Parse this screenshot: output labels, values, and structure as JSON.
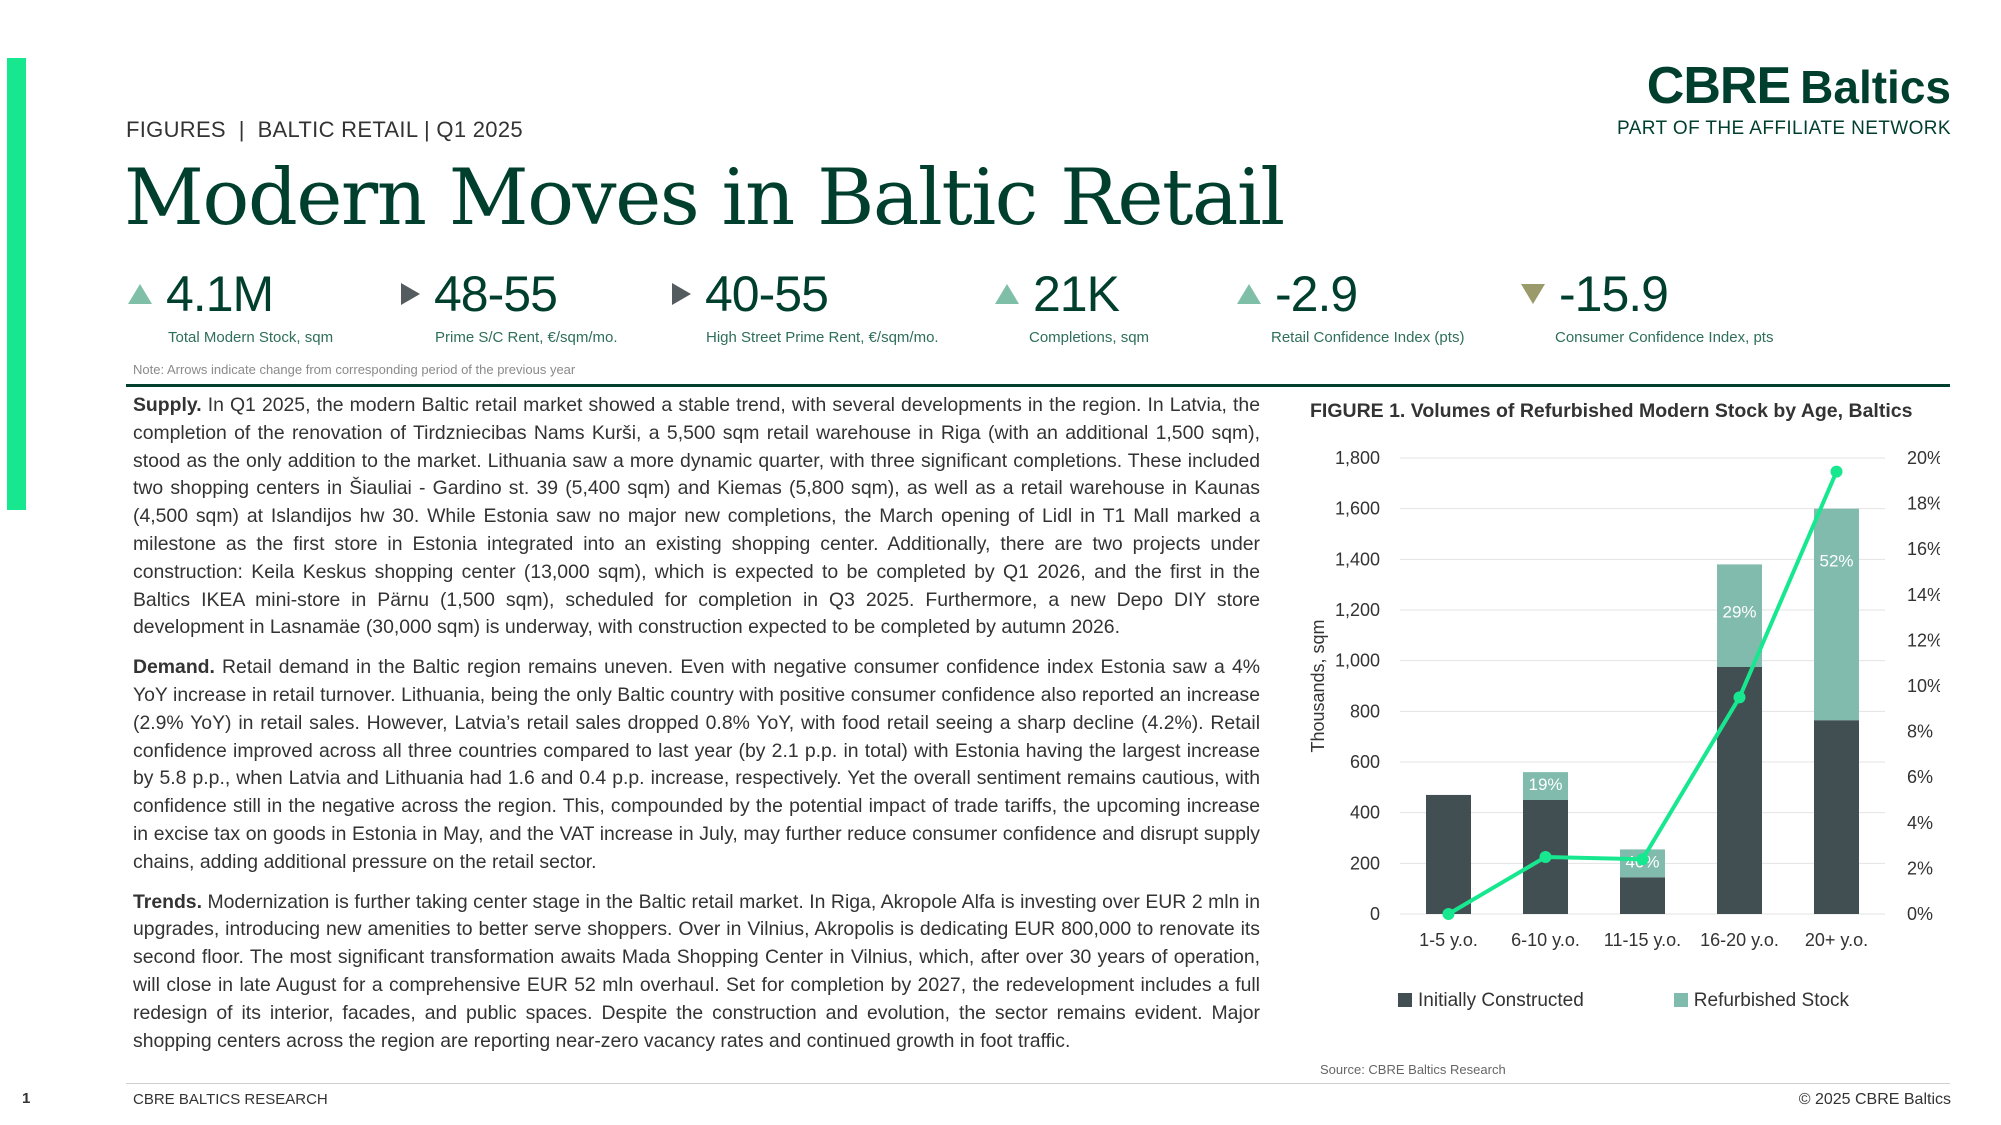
{
  "header": {
    "section": "FIGURES",
    "topic": "BALTIC RETAIL",
    "period": "Q1 2025",
    "separator": "|"
  },
  "brand": {
    "name": "CBRE",
    "region": "Baltics",
    "tagline": "PART OF THE AFFILIATE NETWORK"
  },
  "title": "Modern Moves in Baltic Retail",
  "kpis": [
    {
      "value": "4.1M",
      "label": "Total Modern Stock, sqm",
      "trend": "up"
    },
    {
      "value": "48-55",
      "label": "Prime S/C Rent, €/sqm/mo.",
      "trend": "flat"
    },
    {
      "value": "40-55",
      "label": "High Street Prime Rent, €/sqm/mo.",
      "trend": "flat"
    },
    {
      "value": "21K",
      "label": "Completions, sqm",
      "trend": "up"
    },
    {
      "value": "-2.9",
      "label": "Retail Confidence Index (pts)",
      "trend": "up"
    },
    {
      "value": "-15.9",
      "label": "Consumer Confidence Index, pts",
      "trend": "down"
    }
  ],
  "note": "Note: Arrows indicate change from corresponding period of the previous year",
  "paragraphs": [
    {
      "lead": "Supply.",
      "text": " In Q1 2025, the modern Baltic retail market showed a stable trend, with several developments in the region. In Latvia, the completion of the renovation of Tirdzniecibas Nams Kurši, a 5,500 sqm retail warehouse in Riga (with an additional 1,500 sqm), stood as the only addition to the market. Lithuania saw a more dynamic quarter, with three significant completions. These included two shopping centers in Šiauliai - Gardino st. 39 (5,400 sqm) and Kiemas (5,800 sqm), as well as a retail warehouse in Kaunas (4,500 sqm) at Islandijos hw 30. While Estonia saw no major new completions, the March opening of Lidl in T1 Mall marked a milestone as the first store in Estonia integrated into an existing shopping center. Additionally, there are two projects under construction: Keila Keskus shopping center (13,000 sqm), which is expected to be completed by Q1 2026, and the first in the Baltics IKEA mini-store in Pärnu (1,500 sqm), scheduled for completion in Q3 2025. Furthermore, a new Depo DIY store development in Lasnamäe (30,000 sqm) is underway, with construction expected to be completed by autumn 2026."
    },
    {
      "lead": "Demand.",
      "text": " Retail demand in the Baltic region remains uneven. Even with negative consumer confidence index Estonia saw a 4% YoY increase in retail turnover. Lithuania, being the only Baltic country with positive consumer confidence also reported an increase (2.9% YoY) in retail sales. However, Latvia’s retail sales dropped 0.8% YoY, with food retail seeing a sharp decline (4.2%). Retail confidence improved across all three countries compared to last year (by 2.1 p.p. in total) with Estonia having the largest increase by 5.8 p.p., when Latvia and Lithuania had 1.6 and 0.4 p.p. increase, respectively. Yet the overall sentiment remains cautious, with confidence still in the negative across the region. This, compounded by the potential impact of trade tariffs, the upcoming increase in excise tax on goods in Estonia in May, and the VAT increase in July, may further reduce consumer confidence and disrupt supply chains, adding additional pressure on the retail sector."
    },
    {
      "lead": "Trends.",
      "text": " Modernization is further taking center stage in the Baltic retail market. In Riga, Akropole Alfa is investing over EUR 2 mln in upgrades, introducing new amenities to better serve shoppers. Over in Vilnius, Akropolis is dedicating EUR 800,000 to renovate its second floor. The most significant transformation awaits Mada Shopping Center in Vilnius, which, after over 30 years of operation, will close in late August for a comprehensive EUR 52 mln overhaul. Set for completion by 2027, the redevelopment includes a full redesign of its interior, facades, and public spaces. Despite the construction and evolution, the sector remains evident. Major shopping centers across the region are reporting near-zero vacancy rates and continued growth in foot traffic."
    }
  ],
  "figure": {
    "title": "FIGURE 1. Volumes of Refurbished Modern Stock by Age, Baltics",
    "source": "Source: CBRE Baltics Research"
  },
  "chart_data": {
    "type": "bar",
    "stacked": true,
    "categories": [
      "1-5 y.o.",
      "6-10 y.o.",
      "11-15 y.o.",
      "16-20 y.o.",
      "20+ y.o."
    ],
    "series": [
      {
        "name": "Initially Constructed",
        "values": [
          470,
          450,
          145,
          975,
          765
        ],
        "color": "#424f52"
      },
      {
        "name": "Refurbished Stock",
        "values": [
          0,
          110,
          110,
          405,
          835
        ],
        "color": "#80bbad"
      }
    ],
    "line_series": {
      "values": [
        0,
        2.5,
        2.4,
        9.5,
        19.4
      ],
      "axis": "right",
      "color": "#17e88f"
    },
    "bar_labels": [
      "",
      "19%",
      "40%",
      "29%",
      "52%"
    ],
    "ylabel": "Thousands, sqm",
    "ylim": [
      0,
      1800
    ],
    "yticks": [
      "0",
      "200",
      "400",
      "600",
      "800",
      "1,000",
      "1,200",
      "1,400",
      "1,600",
      "1,800"
    ],
    "y2lim": [
      0,
      20
    ],
    "y2ticks": [
      "0%",
      "2%",
      "4%",
      "6%",
      "8%",
      "10%",
      "12%",
      "14%",
      "16%",
      "18%",
      "20%"
    ],
    "grid": true,
    "legend": "bottom"
  },
  "footer": {
    "page": "1",
    "left": "CBRE BALTICS RESEARCH",
    "right": "© 2025 CBRE Baltics"
  }
}
